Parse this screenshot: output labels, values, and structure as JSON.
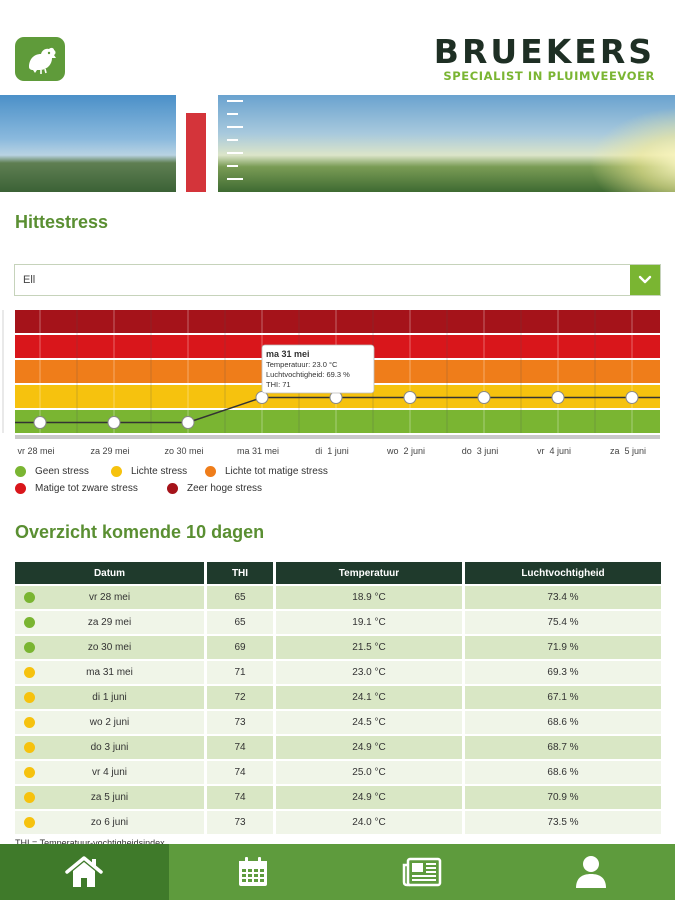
{
  "brand": {
    "name": "BRUEKERS",
    "tagline": "SPECIALIST IN PLUIMVEEVOER",
    "colors": {
      "dark": "#1e2f24",
      "green": "#7ab532"
    }
  },
  "app_icon": "chicken-icon",
  "page_title": "Hittestress",
  "dropdown": {
    "value": "Ell",
    "icon": "chevron-down-icon"
  },
  "chart_data": {
    "type": "line",
    "categories": [
      "vr 28 mei",
      "za 29 mei",
      "zo 30 mei",
      "ma 31 mei",
      "di  1 juni",
      "wo  2 juni",
      "do  3 juni",
      "vr  4 juni",
      "za  5 juni"
    ],
    "zones": [
      {
        "name": "Geen stress",
        "color": "#7ab532",
        "level": 1
      },
      {
        "name": "Lichte stress",
        "color": "#f6c20e",
        "level": 2
      },
      {
        "name": "Lichte tot matige stress",
        "color": "#ef7d1a",
        "level": 3
      },
      {
        "name": "Matige tot zware stress",
        "color": "#d9161b",
        "level": 4
      },
      {
        "name": "Zeer hoge stress",
        "color": "#a5131a",
        "level": 5
      }
    ],
    "levels": [
      1,
      1,
      1,
      2,
      2,
      2,
      2,
      2,
      2
    ],
    "tooltip": {
      "title": "ma 31 mei",
      "temperature": "Temperatuur: 23.0 °C",
      "humidity": "Luchtvochtigheid: 69.3 %",
      "thi": "THI: 71"
    }
  },
  "overview_title": "Overzicht komende 10 dagen",
  "table": {
    "headers": [
      "Datum",
      "THI",
      "Temperatuur",
      "Luchtvochtigheid"
    ],
    "rows": [
      {
        "date": "vr 28 mei",
        "thi": "65",
        "temp": "18.9 °C",
        "hum": "73.4 %",
        "status": "#7ab532"
      },
      {
        "date": "za 29 mei",
        "thi": "65",
        "temp": "19.1 °C",
        "hum": "75.4 %",
        "status": "#7ab532"
      },
      {
        "date": "zo 30 mei",
        "thi": "69",
        "temp": "21.5 °C",
        "hum": "71.9 %",
        "status": "#7ab532"
      },
      {
        "date": "ma 31 mei",
        "thi": "71",
        "temp": "23.0 °C",
        "hum": "69.3 %",
        "status": "#f6c20e"
      },
      {
        "date": "di  1 juni",
        "thi": "72",
        "temp": "24.1 °C",
        "hum": "67.1 %",
        "status": "#f6c20e"
      },
      {
        "date": "wo  2 juni",
        "thi": "73",
        "temp": "24.5 °C",
        "hum": "68.6 %",
        "status": "#f6c20e"
      },
      {
        "date": "do  3 juni",
        "thi": "74",
        "temp": "24.9 °C",
        "hum": "68.7 %",
        "status": "#f6c20e"
      },
      {
        "date": "vr  4 juni",
        "thi": "74",
        "temp": "25.0 °C",
        "hum": "68.6 %",
        "status": "#f6c20e"
      },
      {
        "date": "za  5 juni",
        "thi": "74",
        "temp": "24.9 °C",
        "hum": "70.9 %",
        "status": "#f6c20e"
      },
      {
        "date": "zo  6 juni",
        "thi": "73",
        "temp": "24.0 °C",
        "hum": "73.5 %",
        "status": "#f6c20e"
      }
    ]
  },
  "footnote": "THI = Temperatuur-vochtigheidsindex",
  "nav": {
    "items": [
      {
        "icon": "home-icon",
        "active": true
      },
      {
        "icon": "calendar-icon",
        "active": false
      },
      {
        "icon": "newspaper-icon",
        "active": false
      },
      {
        "icon": "user-icon",
        "active": false
      }
    ]
  }
}
